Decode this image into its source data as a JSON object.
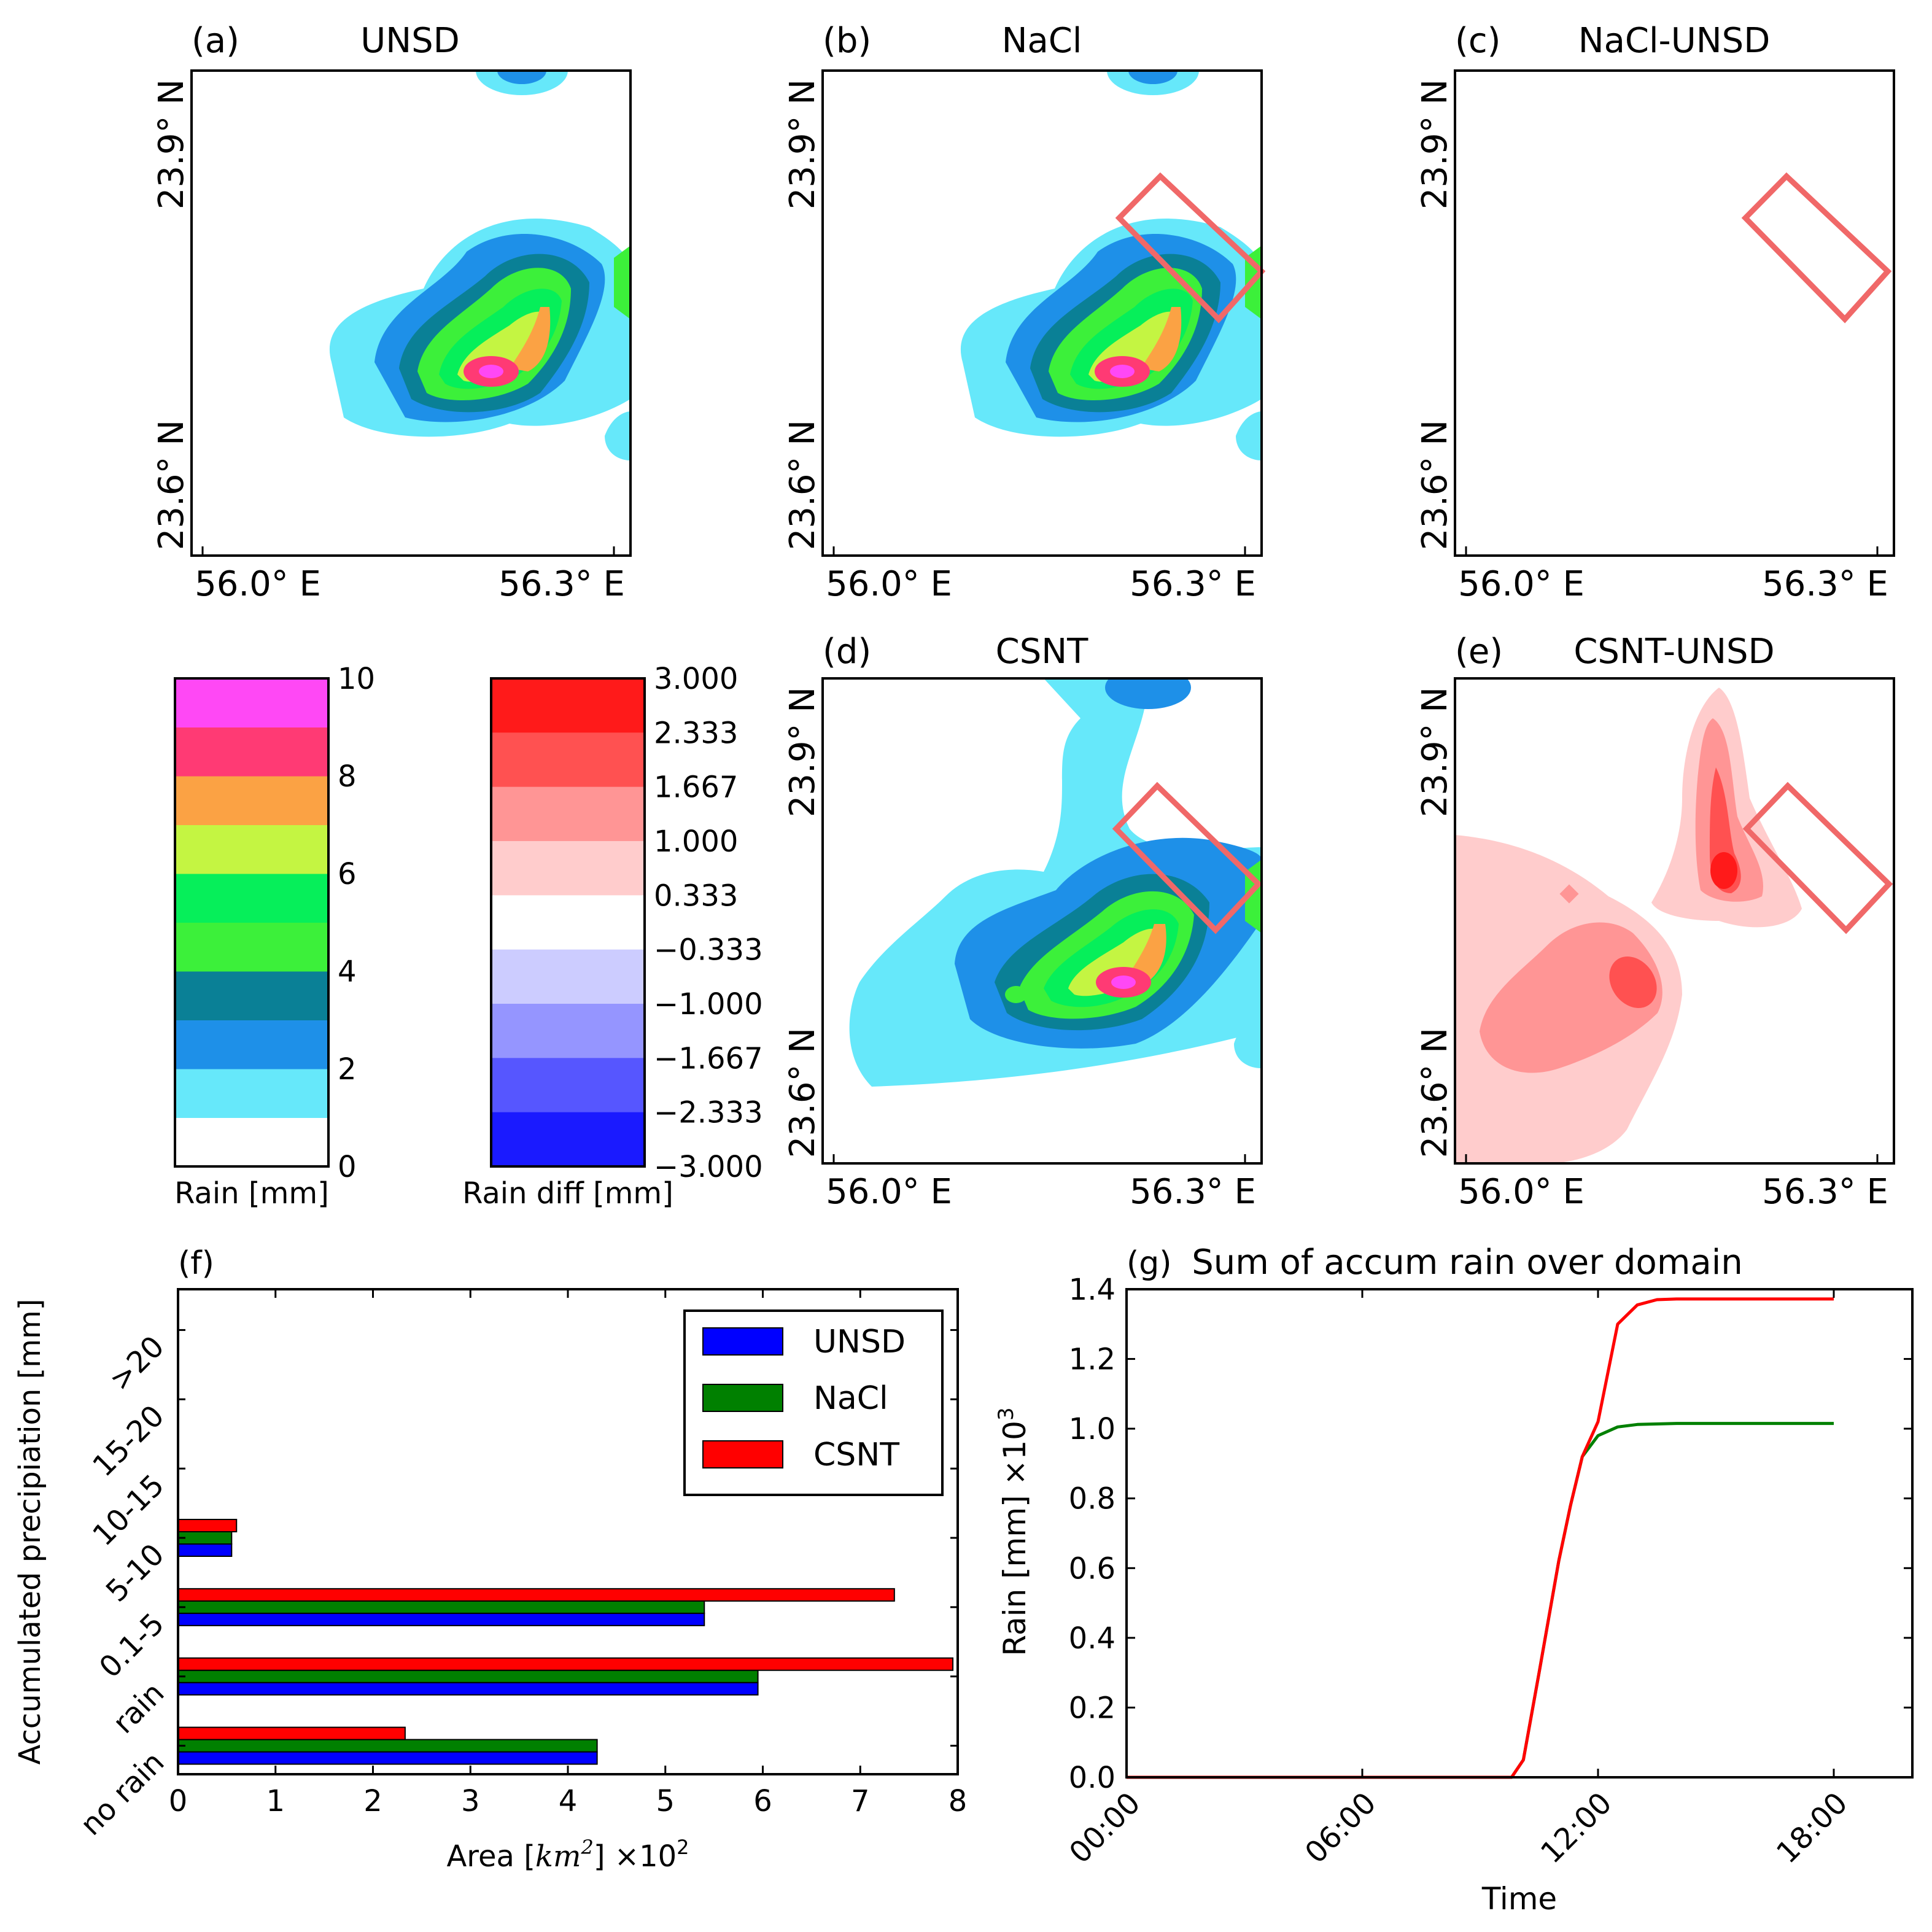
{
  "maps": {
    "lon_labels": [
      "56.0° E",
      "56.3° E"
    ],
    "lat_labels": [
      "23.6° N",
      "23.9° N"
    ],
    "panels": [
      {
        "id": "a",
        "tag": "(a)",
        "title": "UNSD"
      },
      {
        "id": "b",
        "tag": "(b)",
        "title": "NaCl"
      },
      {
        "id": "c",
        "tag": "(c)",
        "title": "NaCl-UNSD"
      },
      {
        "id": "d",
        "tag": "(d)",
        "title": "CSNT"
      },
      {
        "id": "e",
        "tag": "(e)",
        "title": "CSNT-UNSD"
      }
    ]
  },
  "colorbars": {
    "rain": {
      "label": "Rain [mm]",
      "ticks": [
        "0",
        "2",
        "4",
        "6",
        "8",
        "10"
      ],
      "colors": [
        "#ffffff",
        "#66e8fa",
        "#1e90e8",
        "#0a8096",
        "#3cf03a",
        "#06ef5a",
        "#c4f542",
        "#fba244",
        "#ff3a74",
        "#ff48f5"
      ]
    },
    "diff": {
      "label": "Rain diff [mm]",
      "ticks": [
        "3.000",
        "2.333",
        "1.667",
        "1.000",
        "0.333",
        "−0.333",
        "−1.000",
        "−1.667",
        "−2.333",
        "−3.000"
      ],
      "colors": [
        "#ff1a1a",
        "#ff5151",
        "#ff9595",
        "#ffcccc",
        "#ffffff",
        "#ccccff",
        "#9595ff",
        "#5656ff",
        "#1a1aff"
      ]
    }
  },
  "chart_data": [
    {
      "id": "f",
      "tag": "(f)",
      "type": "bar",
      "orientation": "horizontal",
      "title": "",
      "categories": [
        "no rain",
        "rain",
        "0.1-5",
        "5-10",
        "10-15",
        "15-20",
        ">20"
      ],
      "series": [
        {
          "name": "UNSD",
          "color": "#0000ff",
          "values": [
            4.3,
            5.95,
            5.4,
            0.55,
            0,
            0,
            0
          ]
        },
        {
          "name": "NaCl",
          "color": "#008000",
          "values": [
            4.3,
            5.95,
            5.4,
            0.55,
            0,
            0,
            0
          ]
        },
        {
          "name": "CSNT",
          "color": "#ff0000",
          "values": [
            2.33,
            7.95,
            7.35,
            0.6,
            0,
            0,
            0
          ]
        }
      ],
      "xlabel_main": "Area [",
      "xlabel_unit": "km",
      "xlabel_exp": "2",
      "xlabel_scale": "] ×10",
      "xlabel_scale_exp": "2",
      "ylabel": "Accumulated precipiation [mm]",
      "xlim": [
        0,
        8
      ],
      "xticks": [
        "0",
        "1",
        "2",
        "3",
        "4",
        "5",
        "6",
        "7",
        "8"
      ],
      "legend": "top-right"
    },
    {
      "id": "g",
      "tag": "(g)",
      "type": "line",
      "title": "Sum of accum rain over domain",
      "xlabel": "Time",
      "ylabel_main": "Rain [mm] ×10",
      "ylabel_exp": "3",
      "xticks": [
        "00:00",
        "06:00",
        "12:00",
        "18:00"
      ],
      "xlim_hours": [
        0,
        20
      ],
      "ylim": [
        0,
        1.4
      ],
      "yticks": [
        "0.0",
        "0.2",
        "0.4",
        "0.6",
        "0.8",
        "1.0",
        "1.2",
        "1.4"
      ],
      "series": [
        {
          "name": "NaCl",
          "color": "#008000",
          "x": [
            0,
            9.8,
            10.1,
            10.5,
            11.0,
            11.3,
            11.6,
            12.0,
            12.5,
            13.0,
            14.0,
            15.0,
            18.0
          ],
          "y": [
            0,
            0,
            0.05,
            0.3,
            0.62,
            0.78,
            0.92,
            0.98,
            1.005,
            1.012,
            1.015,
            1.015,
            1.015
          ]
        },
        {
          "name": "CSNT",
          "color": "#ff0000",
          "x": [
            0,
            9.8,
            10.1,
            10.5,
            11.0,
            11.3,
            11.6,
            12.0,
            12.5,
            13.0,
            13.5,
            14.0,
            15.0,
            18.0
          ],
          "y": [
            0,
            0,
            0.05,
            0.3,
            0.62,
            0.78,
            0.92,
            1.02,
            1.3,
            1.355,
            1.37,
            1.372,
            1.372,
            1.372
          ]
        }
      ]
    }
  ]
}
